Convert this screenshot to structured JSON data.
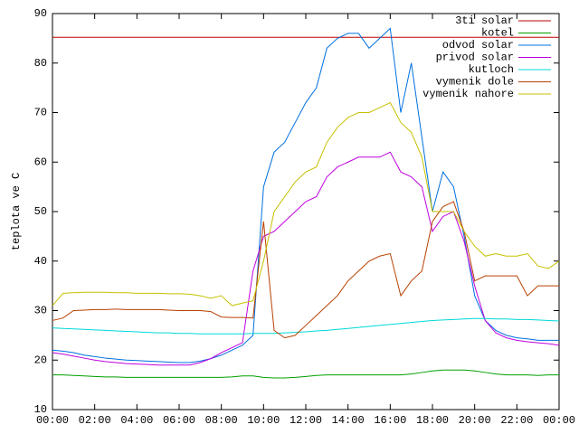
{
  "chart_data": {
    "type": "line",
    "y_label": "teplota ve C",
    "x": [
      0,
      0.5,
      1,
      1.5,
      2,
      2.5,
      3,
      3.5,
      4,
      4.5,
      5,
      5.5,
      6,
      6.5,
      7,
      7.5,
      8,
      8.5,
      9,
      9.5,
      10,
      10.5,
      11,
      11.5,
      12,
      12.5,
      13,
      13.5,
      14,
      14.5,
      15,
      15.5,
      16,
      16.5,
      17,
      17.5,
      18,
      18.5,
      19,
      19.5,
      20,
      20.5,
      21,
      21.5,
      22,
      22.5,
      23,
      23.5,
      24
    ],
    "xlim": [
      0,
      24
    ],
    "xticks": [
      {
        "value": 0,
        "label": "00:00"
      },
      {
        "value": 2,
        "label": "02:00"
      },
      {
        "value": 4,
        "label": "04:00"
      },
      {
        "value": 6,
        "label": "06:00"
      },
      {
        "value": 8,
        "label": "08:00"
      },
      {
        "value": 10,
        "label": "10:00"
      },
      {
        "value": 12,
        "label": "12:00"
      },
      {
        "value": 14,
        "label": "14:00"
      },
      {
        "value": 16,
        "label": "16:00"
      },
      {
        "value": 18,
        "label": "18:00"
      },
      {
        "value": 20,
        "label": "20:00"
      },
      {
        "value": 22,
        "label": "22:00"
      },
      {
        "value": 24,
        "label": "00:00"
      }
    ],
    "ylim": [
      10,
      90
    ],
    "yticks": [
      10,
      20,
      30,
      40,
      50,
      60,
      70,
      80,
      90
    ],
    "legend": "top-right",
    "series": [
      {
        "name": "3ti solar",
        "color": "#c00000",
        "values": [
          85.2,
          85.2,
          85.2,
          85.2,
          85.2,
          85.2,
          85.2,
          85.2,
          85.2,
          85.2,
          85.2,
          85.2,
          85.2,
          85.2,
          85.2,
          85.2,
          85.2,
          85.2,
          85.2,
          85.2,
          85.2,
          85.2,
          85.2,
          85.2,
          85.2,
          85.2,
          85.2,
          85.2,
          85.2,
          85.2,
          85.2,
          85.2,
          85.2,
          85.2,
          85.2,
          85.2,
          85.2,
          85.2,
          85.2,
          85.2,
          85.2,
          85.2,
          85.2,
          85.2,
          85.2,
          85.2,
          85.2,
          85.2,
          85.2
        ]
      },
      {
        "name": "kotel",
        "color": "#00a000",
        "values": [
          17,
          17,
          16.9,
          16.8,
          16.7,
          16.6,
          16.6,
          16.5,
          16.5,
          16.5,
          16.5,
          16.5,
          16.5,
          16.5,
          16.5,
          16.5,
          16.5,
          16.6,
          16.8,
          16.8,
          16.5,
          16.4,
          16.4,
          16.5,
          16.7,
          16.9,
          17,
          17,
          17,
          17,
          17,
          17,
          17,
          17,
          17.2,
          17.5,
          17.8,
          18,
          18,
          18,
          17.8,
          17.5,
          17.2,
          17,
          17,
          17,
          16.9,
          17,
          17
        ]
      },
      {
        "name": "odvod solar",
        "color": "#0070e0",
        "values": [
          22,
          21.8,
          21.5,
          21,
          20.7,
          20.4,
          20.2,
          20,
          19.9,
          19.8,
          19.7,
          19.6,
          19.5,
          19.5,
          19.8,
          20.3,
          21,
          22,
          23,
          25,
          55,
          62,
          64,
          68,
          72,
          75,
          83,
          85,
          86,
          86,
          83,
          85,
          87,
          70,
          80,
          65,
          50,
          58,
          55,
          45,
          33,
          28,
          26,
          25,
          24.5,
          24.3,
          24,
          24,
          24
        ]
      },
      {
        "name": "privod solar",
        "color": "#c000e0",
        "values": [
          21.5,
          21.2,
          20.8,
          20.4,
          20,
          19.7,
          19.5,
          19.3,
          19.2,
          19.1,
          19,
          19,
          19,
          19,
          19.5,
          20.3,
          21.5,
          22.5,
          23.5,
          38,
          45,
          46,
          48,
          50,
          52,
          53,
          57,
          59,
          60,
          61,
          61,
          61,
          62,
          58,
          57,
          55,
          46,
          49,
          50,
          44,
          35,
          28,
          25.5,
          24.5,
          24,
          23.7,
          23.5,
          23.3,
          23
        ]
      },
      {
        "name": "kutloch",
        "color": "#00d8d8",
        "values": [
          26.5,
          26.4,
          26.3,
          26.2,
          26.1,
          26,
          25.9,
          25.8,
          25.7,
          25.6,
          25.5,
          25.5,
          25.4,
          25.4,
          25.3,
          25.3,
          25.3,
          25.3,
          25.3,
          25.4,
          25.4,
          25.4,
          25.5,
          25.6,
          25.7,
          25.9,
          26,
          26.2,
          26.4,
          26.6,
          26.8,
          27,
          27.2,
          27.4,
          27.6,
          27.8,
          28,
          28.1,
          28.2,
          28.3,
          28.4,
          28.4,
          28.3,
          28.3,
          28.2,
          28.2,
          28.1,
          28,
          27.9
        ]
      },
      {
        "name": "vymenik dole",
        "color": "#b84000",
        "values": [
          28,
          28.5,
          30,
          30.1,
          30.2,
          30.2,
          30.3,
          30.2,
          30.2,
          30.2,
          30.2,
          30.1,
          30,
          30,
          30,
          29.8,
          28.7,
          28.6,
          28.6,
          28.5,
          48,
          26,
          24.5,
          25,
          27,
          29,
          31,
          33,
          36,
          38,
          40,
          41,
          41.5,
          33,
          36,
          38,
          48,
          51,
          52,
          46,
          36,
          37,
          37,
          37,
          37,
          33,
          35,
          35,
          35
        ]
      },
      {
        "name": "vymenik nahore",
        "color": "#c8c000",
        "values": [
          31,
          33.5,
          33.6,
          33.7,
          33.7,
          33.7,
          33.6,
          33.6,
          33.5,
          33.5,
          33.5,
          33.4,
          33.4,
          33.3,
          33,
          32.5,
          33,
          31,
          31.5,
          32,
          40,
          50,
          53,
          56,
          58,
          59,
          64,
          67,
          69,
          70,
          70,
          71,
          72,
          68,
          66,
          61,
          50,
          50,
          50,
          46,
          43,
          41,
          41.5,
          41,
          41,
          41.5,
          39,
          38.5,
          40
        ]
      }
    ]
  }
}
